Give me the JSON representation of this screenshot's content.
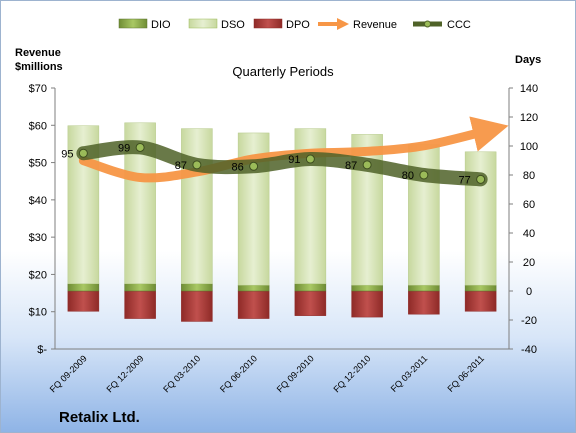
{
  "chart_data": {
    "type": "bar",
    "title": "Quarterly Periods",
    "company": "Retalix Ltd.",
    "left_axis": {
      "label_line1": "Revenue",
      "label_line2": "$millions",
      "range": [
        0,
        70
      ],
      "ticks": [
        "$-",
        "$10",
        "$20",
        "$30",
        "$40",
        "$50",
        "$60",
        "$70"
      ]
    },
    "right_axis": {
      "label": "Days",
      "range": [
        -40,
        140
      ],
      "ticks": [
        "-40",
        "-20",
        "0",
        "20",
        "40",
        "60",
        "80",
        "100",
        "120",
        "140"
      ]
    },
    "categories": [
      "FQ 09-2009",
      "FQ 12-2009",
      "FQ 03-2010",
      "FQ 06-2010",
      "FQ 09-2010",
      "FQ 12-2010",
      "FQ 03-2011",
      "FQ 06-2011"
    ],
    "legend": [
      "DIO",
      "DSO",
      "DPO",
      "Revenue",
      "CCC"
    ],
    "series": [
      {
        "name": "DIO",
        "axis": "right",
        "color": "#9bbb59",
        "values": [
          5,
          5,
          5,
          4,
          5,
          4,
          4,
          4
        ]
      },
      {
        "name": "DSO",
        "axis": "right",
        "color": "#d7e4bd",
        "values": [
          109,
          111,
          107,
          105,
          107,
          104,
          97,
          92
        ]
      },
      {
        "name": "DPO",
        "axis": "right",
        "color": "#c0504d",
        "values": [
          -14,
          -19,
          -21,
          -19,
          -17,
          -18,
          -16,
          -14
        ]
      },
      {
        "name": "Revenue",
        "axis": "left",
        "color": "#f79646",
        "values": [
          50.5,
          46,
          47.5,
          51,
          52.5,
          53,
          54.5,
          58.5
        ]
      },
      {
        "name": "CCC",
        "axis": "right",
        "color": "#5f7530",
        "values": [
          95,
          99,
          87,
          86,
          91,
          87,
          80,
          77
        ]
      }
    ],
    "ccc_labels": [
      "95",
      "99",
      "87",
      "86",
      "91",
      "87",
      "80",
      "77"
    ],
    "grid": false,
    "legend_position": "top"
  }
}
